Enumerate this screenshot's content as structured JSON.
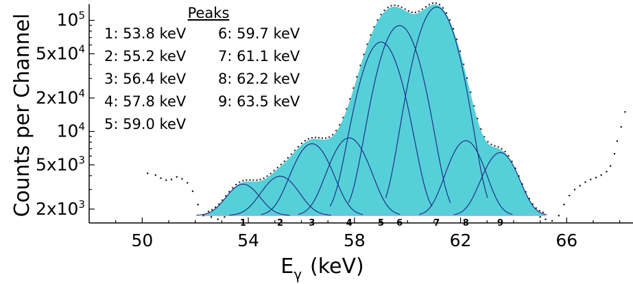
{
  "chart_data": {
    "type": "scatter",
    "title": "",
    "xlabel": "E",
    "xlabel_sub": "γ",
    "xlabel_unit": "(keV)",
    "ylabel": "Counts per Channel",
    "yscale": "log",
    "xlim": [
      48,
      68.5
    ],
    "ylim": [
      1500,
      140000
    ],
    "x_ticks": [
      50,
      54,
      58,
      62,
      66
    ],
    "x_tick_labels": [
      "50",
      "54",
      "58",
      "62",
      "66"
    ],
    "y_ticks": [
      {
        "value": 2000,
        "mant": "2x10",
        "exp": "3"
      },
      {
        "value": 5000,
        "mant": "5x10",
        "exp": "3"
      },
      {
        "value": 10000,
        "mant": "10",
        "exp": "4"
      },
      {
        "value": 20000,
        "mant": "2x10",
        "exp": "4"
      },
      {
        "value": 50000,
        "mant": "5x10",
        "exp": "4"
      },
      {
        "value": 100000,
        "mant": "10",
        "exp": "5"
      }
    ],
    "legend": {
      "title": "Peaks",
      "placement": "top-left",
      "col1": [
        "1: 53.8 keV",
        "2: 55.2 keV",
        "3: 56.4 keV",
        "4: 57.8 keV",
        "5: 59.0 keV"
      ],
      "col2": [
        "6: 59.7 keV",
        "7: 61.1 keV",
        "8: 62.2 keV",
        "9: 63.5 keV"
      ]
    },
    "baseline": 1750,
    "fit_range": [
      52.3,
      65.2
    ],
    "peaks": [
      {
        "label": "1",
        "x": 53.8,
        "amplitude": 1600,
        "sigma": 0.55
      },
      {
        "label": "2",
        "x": 55.2,
        "amplitude": 2200,
        "sigma": 0.6
      },
      {
        "label": "3",
        "x": 56.4,
        "amplitude": 6000,
        "sigma": 0.6
      },
      {
        "label": "4",
        "x": 57.8,
        "amplitude": 7000,
        "sigma": 0.6
      },
      {
        "label": "5",
        "x": 59.0,
        "amplitude": 62000,
        "sigma": 0.6
      },
      {
        "label": "6",
        "x": 59.7,
        "amplitude": 88000,
        "sigma": 0.6
      },
      {
        "label": "7",
        "x": 61.1,
        "amplitude": 130000,
        "sigma": 0.6
      },
      {
        "label": "8",
        "x": 62.2,
        "amplitude": 6500,
        "sigma": 0.55
      },
      {
        "label": "9",
        "x": 63.5,
        "amplitude": 4700,
        "sigma": 0.55
      }
    ],
    "fill_color": "#55d0d8",
    "curve_color": "#1f2f86",
    "baseline_color": "#c69ad8",
    "points_left": [
      [
        50.2,
        4200
      ],
      [
        50.5,
        4050
      ],
      [
        50.7,
        3800
      ],
      [
        50.9,
        3650
      ],
      [
        51.1,
        3700
      ],
      [
        51.3,
        3900
      ],
      [
        51.5,
        3750
      ],
      [
        51.7,
        3450
      ],
      [
        51.9,
        2900
      ],
      [
        52.1,
        2200
      ],
      [
        52.3,
        1750
      ],
      [
        52.6,
        1700
      ],
      [
        52.85,
        1620
      ],
      [
        53.1,
        1700
      ]
    ],
    "points_right": [
      [
        65.0,
        1700
      ],
      [
        65.2,
        1620
      ],
      [
        65.45,
        1570
      ],
      [
        65.7,
        1750
      ],
      [
        65.9,
        2200
      ],
      [
        66.1,
        2650
      ],
      [
        66.3,
        3000
      ],
      [
        66.5,
        3250
      ],
      [
        66.7,
        3500
      ],
      [
        66.9,
        3700
      ],
      [
        67.1,
        3850
      ],
      [
        67.3,
        4050
      ],
      [
        67.5,
        4350
      ],
      [
        67.65,
        4900
      ],
      [
        67.8,
        6300
      ],
      [
        67.9,
        8200
      ],
      [
        68.05,
        11000
      ],
      [
        68.2,
        15000
      ]
    ]
  }
}
